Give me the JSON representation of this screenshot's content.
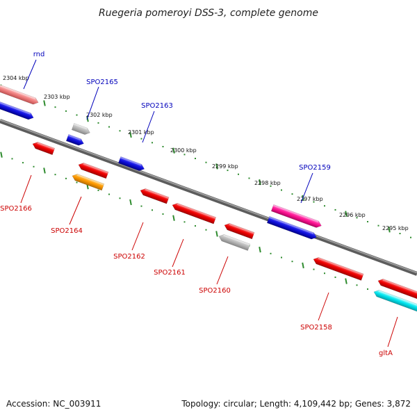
{
  "title": "Ruegeria pomeroyi DSS-3, complete genome",
  "accession": "Accession: NC_003911",
  "summary": "Topology: circular; Length: 4,109,442 bp; Genes: 3,872",
  "colors": {
    "backbone": "#808080",
    "tick": "#2e8b2e",
    "plus_label": "#0000bb",
    "minus_label": "#cc0000",
    "red": "#ee0000",
    "blue": "#1010dd",
    "gray": "#b8b8b8",
    "orange": "#ff9900",
    "salmon": "#f08080",
    "pink": "#ff1493",
    "cyan": "#00e5ee"
  },
  "tick_labels": [
    "2304 kbp",
    "2303 kbp",
    "2302 kbp",
    "2301 kbp",
    "2300 kbp",
    "2299 kbp",
    "2298 kbp",
    "2297 kbp",
    "2296 kbp",
    "2295 kbp"
  ],
  "genes_plus": [
    {
      "name": "rnd",
      "color": "salmon"
    },
    {
      "name": "SPO2165",
      "color": "gray"
    },
    {
      "name": "SPO2163",
      "color": "blue"
    },
    {
      "name": "SPO2159",
      "color": "pink"
    }
  ],
  "genes_minus": [
    {
      "name": "SPO2166",
      "color": "red"
    },
    {
      "name": "SPO2164",
      "color": "orange"
    },
    {
      "name": "SPO2162",
      "color": "red"
    },
    {
      "name": "SPO2161",
      "color": "red"
    },
    {
      "name": "SPO2160",
      "color": "gray"
    },
    {
      "name": "SPO2158",
      "color": "red"
    },
    {
      "name": "gltA",
      "color": "cyan"
    }
  ]
}
